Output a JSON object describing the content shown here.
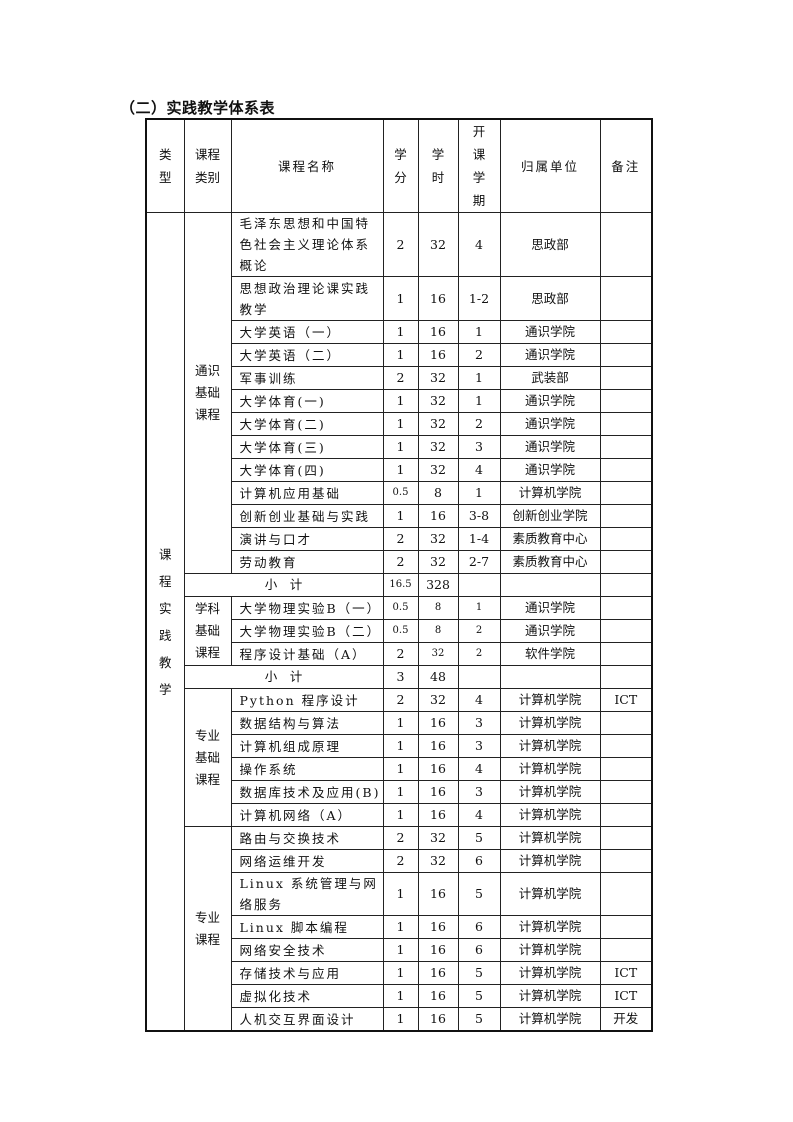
{
  "title": "（二）实践教学体系表",
  "table": {
    "headers": [
      "类\n型",
      "课程\n类别",
      "课程名称",
      "学\n分",
      "学\n时",
      "开\n课\n学\n期",
      "归属单位",
      "备注"
    ],
    "type_label": "课\n程\n实\n践\n教\n学",
    "sections": [
      {
        "category": "通识\n基础\n课程",
        "courses": [
          {
            "name": "毛泽东思想和中国特色社会主义理论体系概论",
            "credits": "2",
            "hours": "32",
            "term": "4",
            "unit": "思政部",
            "note": ""
          },
          {
            "name": "思想政治理论课实践教学",
            "credits": "1",
            "hours": "16",
            "term": "1-2",
            "unit": "思政部",
            "note": ""
          },
          {
            "name": "大学英语（一）",
            "credits": "1",
            "hours": "16",
            "term": "1",
            "unit": "通识学院",
            "note": ""
          },
          {
            "name": "大学英语（二）",
            "credits": "1",
            "hours": "16",
            "term": "2",
            "unit": "通识学院",
            "note": ""
          },
          {
            "name": "军事训练",
            "credits": "2",
            "hours": "32",
            "term": "1",
            "unit": "武装部",
            "note": ""
          },
          {
            "name": "大学体育(一)",
            "credits": "1",
            "hours": "32",
            "term": "1",
            "unit": "通识学院",
            "note": ""
          },
          {
            "name": "大学体育(二)",
            "credits": "1",
            "hours": "32",
            "term": "2",
            "unit": "通识学院",
            "note": ""
          },
          {
            "name": "大学体育(三)",
            "credits": "1",
            "hours": "32",
            "term": "3",
            "unit": "通识学院",
            "note": ""
          },
          {
            "name": "大学体育(四)",
            "credits": "1",
            "hours": "32",
            "term": "4",
            "unit": "通识学院",
            "note": ""
          },
          {
            "name": "计算机应用基础",
            "credits": "0.5",
            "hours": "8",
            "term": "1",
            "unit": "计算机学院",
            "note": ""
          },
          {
            "name": "创新创业基础与实践",
            "credits": "1",
            "hours": "16",
            "term": "3-8",
            "unit": "创新创业学院",
            "note": ""
          },
          {
            "name": "演讲与口才",
            "credits": "2",
            "hours": "32",
            "term": "1-4",
            "unit": "素质教育中心",
            "note": ""
          },
          {
            "name": "劳动教育",
            "credits": "2",
            "hours": "32",
            "term": "2-7",
            "unit": "素质教育中心",
            "note": ""
          }
        ],
        "subtotal": {
          "label": "小　计",
          "credits": "16.5",
          "hours": "328"
        }
      },
      {
        "category": "学科\n基础\n课程",
        "courses": [
          {
            "name": "大学物理实验B（一）",
            "credits": "0.5",
            "hours": "8",
            "term": "1",
            "unit": "通识学院",
            "note": ""
          },
          {
            "name": "大学物理实验B（二）",
            "credits": "0.5",
            "hours": "8",
            "term": "2",
            "unit": "通识学院",
            "note": ""
          },
          {
            "name": "程序设计基础（A）",
            "credits": "2",
            "hours": "32",
            "term": "2",
            "unit": "软件学院",
            "note": ""
          }
        ],
        "subtotal": {
          "label": "小　计",
          "credits": "3",
          "hours": "48"
        }
      },
      {
        "category": "专业\n基础\n课程",
        "courses": [
          {
            "name": "Python 程序设计",
            "credits": "2",
            "hours": "32",
            "term": "4",
            "unit": "计算机学院",
            "note": "ICT"
          },
          {
            "name": "数据结构与算法",
            "credits": "1",
            "hours": "16",
            "term": "3",
            "unit": "计算机学院",
            "note": ""
          },
          {
            "name": "计算机组成原理",
            "credits": "1",
            "hours": "16",
            "term": "3",
            "unit": "计算机学院",
            "note": ""
          },
          {
            "name": "操作系统",
            "credits": "1",
            "hours": "16",
            "term": "4",
            "unit": "计算机学院",
            "note": ""
          },
          {
            "name": "数据库技术及应用(B)",
            "credits": "1",
            "hours": "16",
            "term": "3",
            "unit": "计算机学院",
            "note": ""
          },
          {
            "name": "计算机网络（A）",
            "credits": "1",
            "hours": "16",
            "term": "4",
            "unit": "计算机学院",
            "note": ""
          }
        ]
      },
      {
        "category": "专业\n课程",
        "courses": [
          {
            "name": "路由与交换技术",
            "credits": "2",
            "hours": "32",
            "term": "5",
            "unit": "计算机学院",
            "note": ""
          },
          {
            "name": "网络运维开发",
            "credits": "2",
            "hours": "32",
            "term": "6",
            "unit": "计算机学院",
            "note": ""
          },
          {
            "name": "Linux 系统管理与网络服务",
            "credits": "1",
            "hours": "16",
            "term": "5",
            "unit": "计算机学院",
            "note": ""
          },
          {
            "name": "Linux 脚本编程",
            "credits": "1",
            "hours": "16",
            "term": "6",
            "unit": "计算机学院",
            "note": ""
          },
          {
            "name": "网络安全技术",
            "credits": "1",
            "hours": "16",
            "term": "6",
            "unit": "计算机学院",
            "note": ""
          },
          {
            "name": "存储技术与应用",
            "credits": "1",
            "hours": "16",
            "term": "5",
            "unit": "计算机学院",
            "note": "ICT"
          },
          {
            "name": "虚拟化技术",
            "credits": "1",
            "hours": "16",
            "term": "5",
            "unit": "计算机学院",
            "note": "ICT"
          },
          {
            "name": "人机交互界面设计",
            "credits": "1",
            "hours": "16",
            "term": "5",
            "unit": "计算机学院",
            "note": "开发"
          }
        ]
      }
    ]
  }
}
